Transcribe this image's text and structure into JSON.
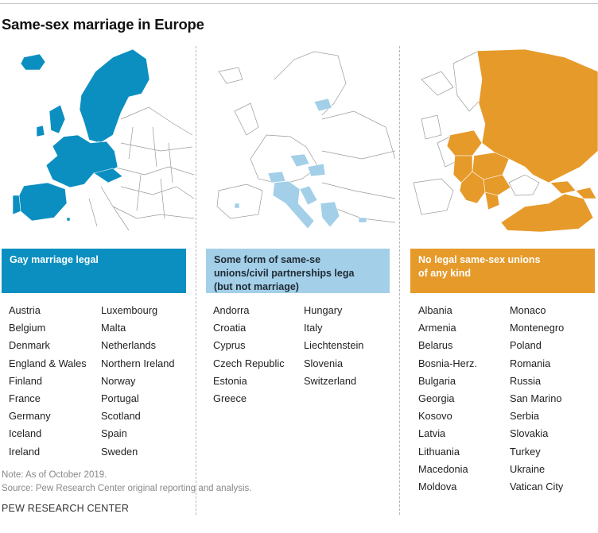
{
  "title": "Same-sex marriage in Europe",
  "colors": {
    "legal": "#0b8fc0",
    "unions": "#a3cfe8",
    "none": "#e69a2a",
    "land": "#ffffff",
    "border": "#8a8a8a"
  },
  "categories": [
    {
      "label": "Gay marriage legal",
      "color": "#0b8fc0",
      "text_color": "#ffffff",
      "countries": [
        "Austria",
        "Belgium",
        "Denmark",
        "England & Wales",
        "Finland",
        "France",
        "Germany",
        "Iceland",
        "Ireland",
        "Luxembourg",
        "Malta",
        "Netherlands",
        "Northern Ireland",
        "Norway",
        "Portugal",
        "Scotland",
        "Spain",
        "Sweden"
      ]
    },
    {
      "label": "Some form of same-sex unions/civil partnerships legal (but not marriage)",
      "color": "#a3cfe8",
      "text_color": "#1f2a33",
      "countries": [
        "Andorra",
        "Croatia",
        "Cyprus",
        "Czech Republic",
        "Estonia",
        "Greece",
        "Hungary",
        "Italy",
        "Liechtenstein",
        "Slovenia",
        "Switzerland"
      ]
    },
    {
      "label": "No legal same-sex unions of any kind",
      "color": "#e69a2a",
      "text_color": "#ffffff",
      "countries": [
        "Albania",
        "Armenia",
        "Belarus",
        "Bosnia-Herz.",
        "Bulgaria",
        "Georgia",
        "Kosovo",
        "Latvia",
        "Lithuania",
        "Macedonia",
        "Moldova",
        "Monaco",
        "Montenegro",
        "Poland",
        "Romania",
        "Russia",
        "San Marino",
        "Serbia",
        "Slovakia",
        "Turkey",
        "Ukraine",
        "Vatican City"
      ]
    }
  ],
  "note": "Note: As of October 2019.",
  "source": "Source: Pew Research Center original reporting and analysis.",
  "footer": "PEW RESEARCH CENTER"
}
